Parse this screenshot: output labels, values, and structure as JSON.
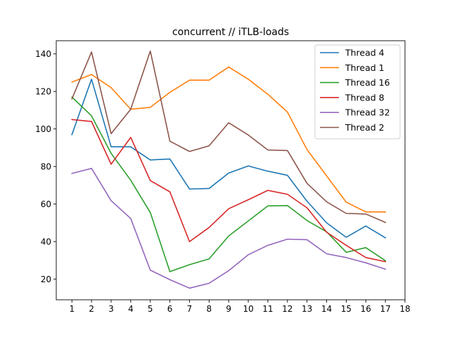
{
  "chart_data": {
    "type": "line",
    "title": "concurrent // iTLB-loads",
    "xlabel": "",
    "ylabel": "",
    "x": [
      1,
      2,
      3,
      4,
      5,
      6,
      7,
      8,
      9,
      10,
      11,
      12,
      13,
      14,
      15,
      16,
      17
    ],
    "xticks": [
      "1",
      "2",
      "3",
      "4",
      "5",
      "6",
      "7",
      "8",
      "9",
      "10",
      "11",
      "12",
      "13",
      "14",
      "15",
      "16",
      "17",
      "18"
    ],
    "xlim": [
      0.2,
      18.0
    ],
    "yticks": [
      "20",
      "40",
      "60",
      "80",
      "100",
      "120",
      "140"
    ],
    "ylim": [
      9,
      147
    ],
    "grid": false,
    "legend_position": "top-right",
    "series": [
      {
        "name": "Thread 4",
        "color": "#1f77b4",
        "values": [
          97,
          126.5,
          90.5,
          90.5,
          83.5,
          84,
          68,
          68.3,
          76.5,
          80.3,
          77.5,
          75.3,
          61.5,
          50,
          42.3,
          48.3,
          42
        ]
      },
      {
        "name": "Thread 1",
        "color": "#ff7f0e",
        "values": [
          125,
          129,
          122,
          110.5,
          111.5,
          119.5,
          126,
          126,
          133,
          126.5,
          118.5,
          109,
          89,
          75,
          61,
          55.8,
          55.8
        ]
      },
      {
        "name": "Thread 16",
        "color": "#2ca02c",
        "values": [
          117,
          107,
          87,
          72.7,
          55.5,
          24,
          27.7,
          30.8,
          43,
          51,
          59,
          59.2,
          51.2,
          45.2,
          34.3,
          36.8,
          29.8
        ]
      },
      {
        "name": "Thread 8",
        "color": "#d62728",
        "values": [
          105,
          104,
          81.2,
          95.5,
          72.5,
          66.5,
          40,
          47.5,
          57.5,
          62.3,
          67.3,
          65.2,
          58,
          45,
          38,
          31.5,
          29.3
        ]
      },
      {
        "name": "Thread 32",
        "color": "#9467bd",
        "values": [
          76.3,
          79,
          61.8,
          52.3,
          24.8,
          19.7,
          15.2,
          17.8,
          24.5,
          33,
          38,
          41.3,
          41,
          33.5,
          31.5,
          28.7,
          25.3
        ]
      },
      {
        "name": "Thread 2",
        "color": "#8c564b",
        "values": [
          116,
          141,
          97.5,
          110.5,
          141.5,
          93.5,
          88,
          91,
          103.3,
          96.8,
          88.8,
          88.5,
          71,
          61.2,
          55,
          54.7,
          50.2
        ]
      }
    ]
  }
}
